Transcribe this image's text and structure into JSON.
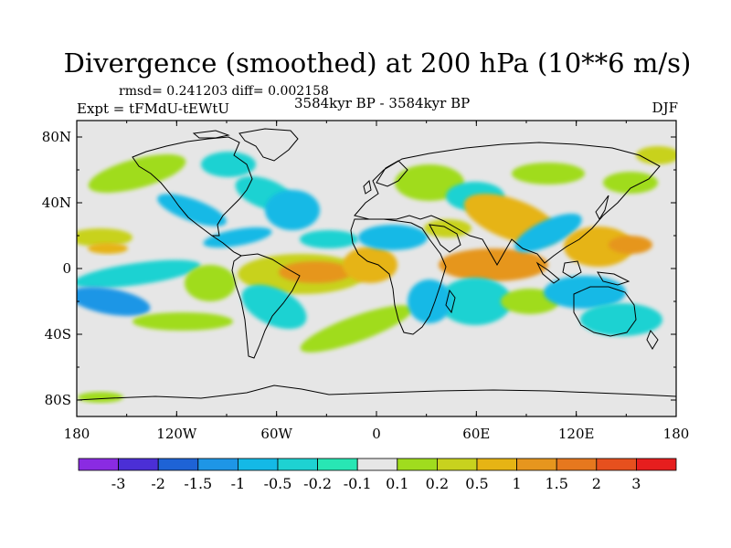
{
  "title": "Divergence (smoothed) at 200 hPa (10**6 m/s)",
  "stats": "rmsd= 0.241203 diff= 0.002158",
  "experiment": "Expt = tFMdU-tEWtU",
  "period": "3584kyr BP - 3584kyr BP",
  "season": "DJF",
  "axes": {
    "lat_ticks": [
      "80N",
      "40N",
      "0",
      "40S",
      "80S"
    ],
    "lon_ticks": [
      "180",
      "120W",
      "60W",
      "0",
      "60E",
      "120E",
      "180"
    ]
  },
  "colorbar": {
    "labels": [
      "-3",
      "-2",
      "-1.5",
      "-1",
      "-0.5",
      "-0.2",
      "-0.1",
      "0.1",
      "0.2",
      "0.5",
      "1",
      "1.5",
      "2",
      "3"
    ],
    "colors": [
      "#8a2be2",
      "#4b2fd6",
      "#1e63d6",
      "#1e96e6",
      "#14b9e6",
      "#1ed2d2",
      "#28e6b4",
      "#e6e6e6",
      "#a0dc1e",
      "#c8d21e",
      "#e6b414",
      "#e6961e",
      "#e6781e",
      "#e6501e",
      "#e61e1e"
    ]
  },
  "palette": {
    "neg_light": "#1ed2d2",
    "neg_mid": "#14b9e6",
    "neg_dark": "#1e96e6",
    "pos_light": "#a0dc1e",
    "pos_mid": "#c8d21e",
    "pos_dark": "#e6b414",
    "pos_strong": "#e6961e",
    "neutral": "#e6e6e6"
  }
}
